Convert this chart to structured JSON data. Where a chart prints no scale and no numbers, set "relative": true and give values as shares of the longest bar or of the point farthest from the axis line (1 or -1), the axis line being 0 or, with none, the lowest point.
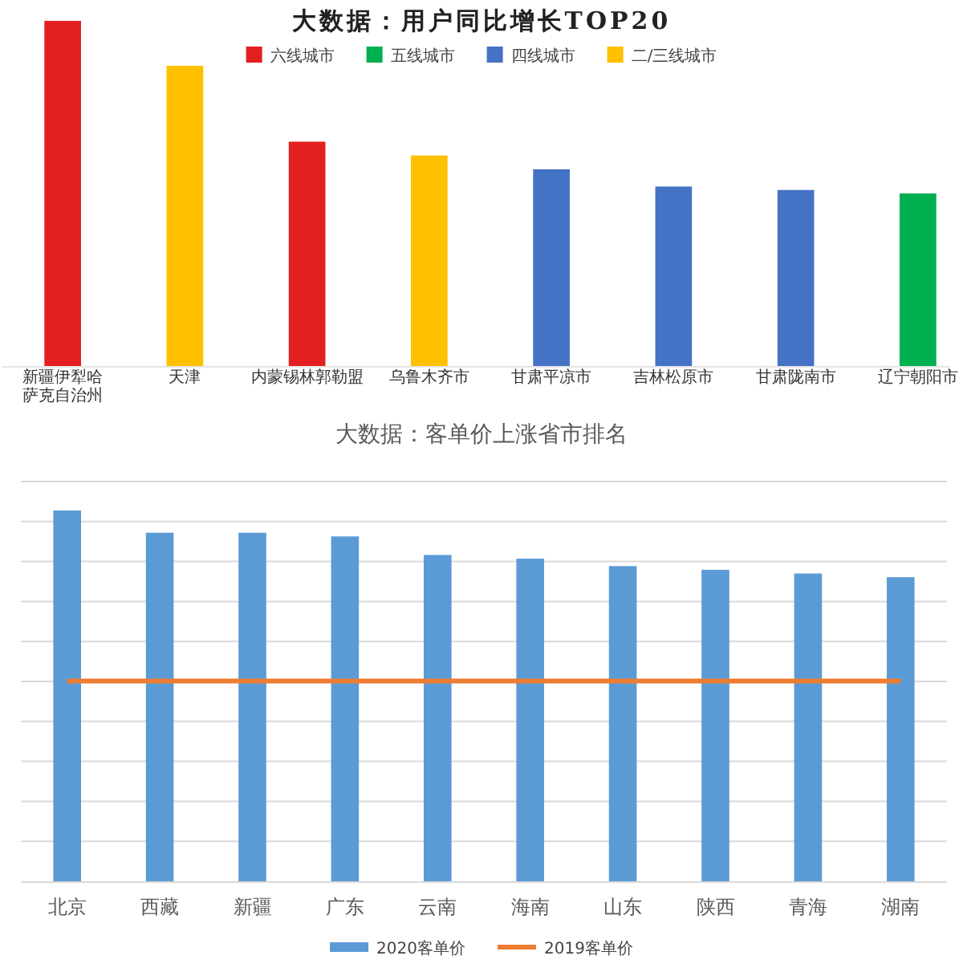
{
  "chart_data": [
    {
      "type": "bar",
      "title": "大数据：用户同比增长TOP20",
      "categories": [
        "新疆伊犁哈萨克自治州",
        "天津",
        "内蒙锡林郭勒盟",
        "乌鲁木齐市",
        "甘肃平凉市",
        "吉林松原市",
        "甘肃陇南市",
        "辽宁朝阳市"
      ],
      "relative": true,
      "stacked": true,
      "legend": "top",
      "series": [
        {
          "name": "六线城市",
          "color": "#e3201f",
          "values": [
            1,
            null,
            0.65,
            null,
            null,
            null,
            null,
            null
          ]
        },
        {
          "name": "五线城市",
          "color": "#00b050",
          "values": [
            null,
            null,
            null,
            null,
            null,
            null,
            null,
            0.5
          ]
        },
        {
          "name": "四线城市",
          "color": "#4472c4",
          "values": [
            null,
            null,
            null,
            null,
            0.57,
            0.52,
            0.51,
            null
          ]
        },
        {
          "name": "二/三线城市",
          "color": "#ffc000",
          "values": [
            null,
            0.87,
            null,
            0.61,
            null,
            null,
            null,
            null
          ]
        }
      ]
    },
    {
      "type": "bar",
      "title": "大数据：客单价上涨省市排名",
      "categories": [
        "北京",
        "西藏",
        "新疆",
        "广东",
        "云南",
        "海南",
        "山东",
        "陕西",
        "青海",
        "湖南"
      ],
      "relative": true,
      "grid": "y",
      "legend": "bottom",
      "series": [
        {
          "name": "2020客单价",
          "color": "#5b9bd5",
          "values": [
            1,
            0.94,
            0.94,
            0.93,
            0.88,
            0.87,
            0.85,
            0.84,
            0.83,
            0.82
          ]
        },
        {
          "name": "2019客单价",
          "type": "line",
          "color": "#ed7d31",
          "values": [
            0.54,
            0.54,
            0.54,
            0.54,
            0.54,
            0.54,
            0.54,
            0.54,
            0.54,
            0.54
          ]
        }
      ]
    }
  ]
}
